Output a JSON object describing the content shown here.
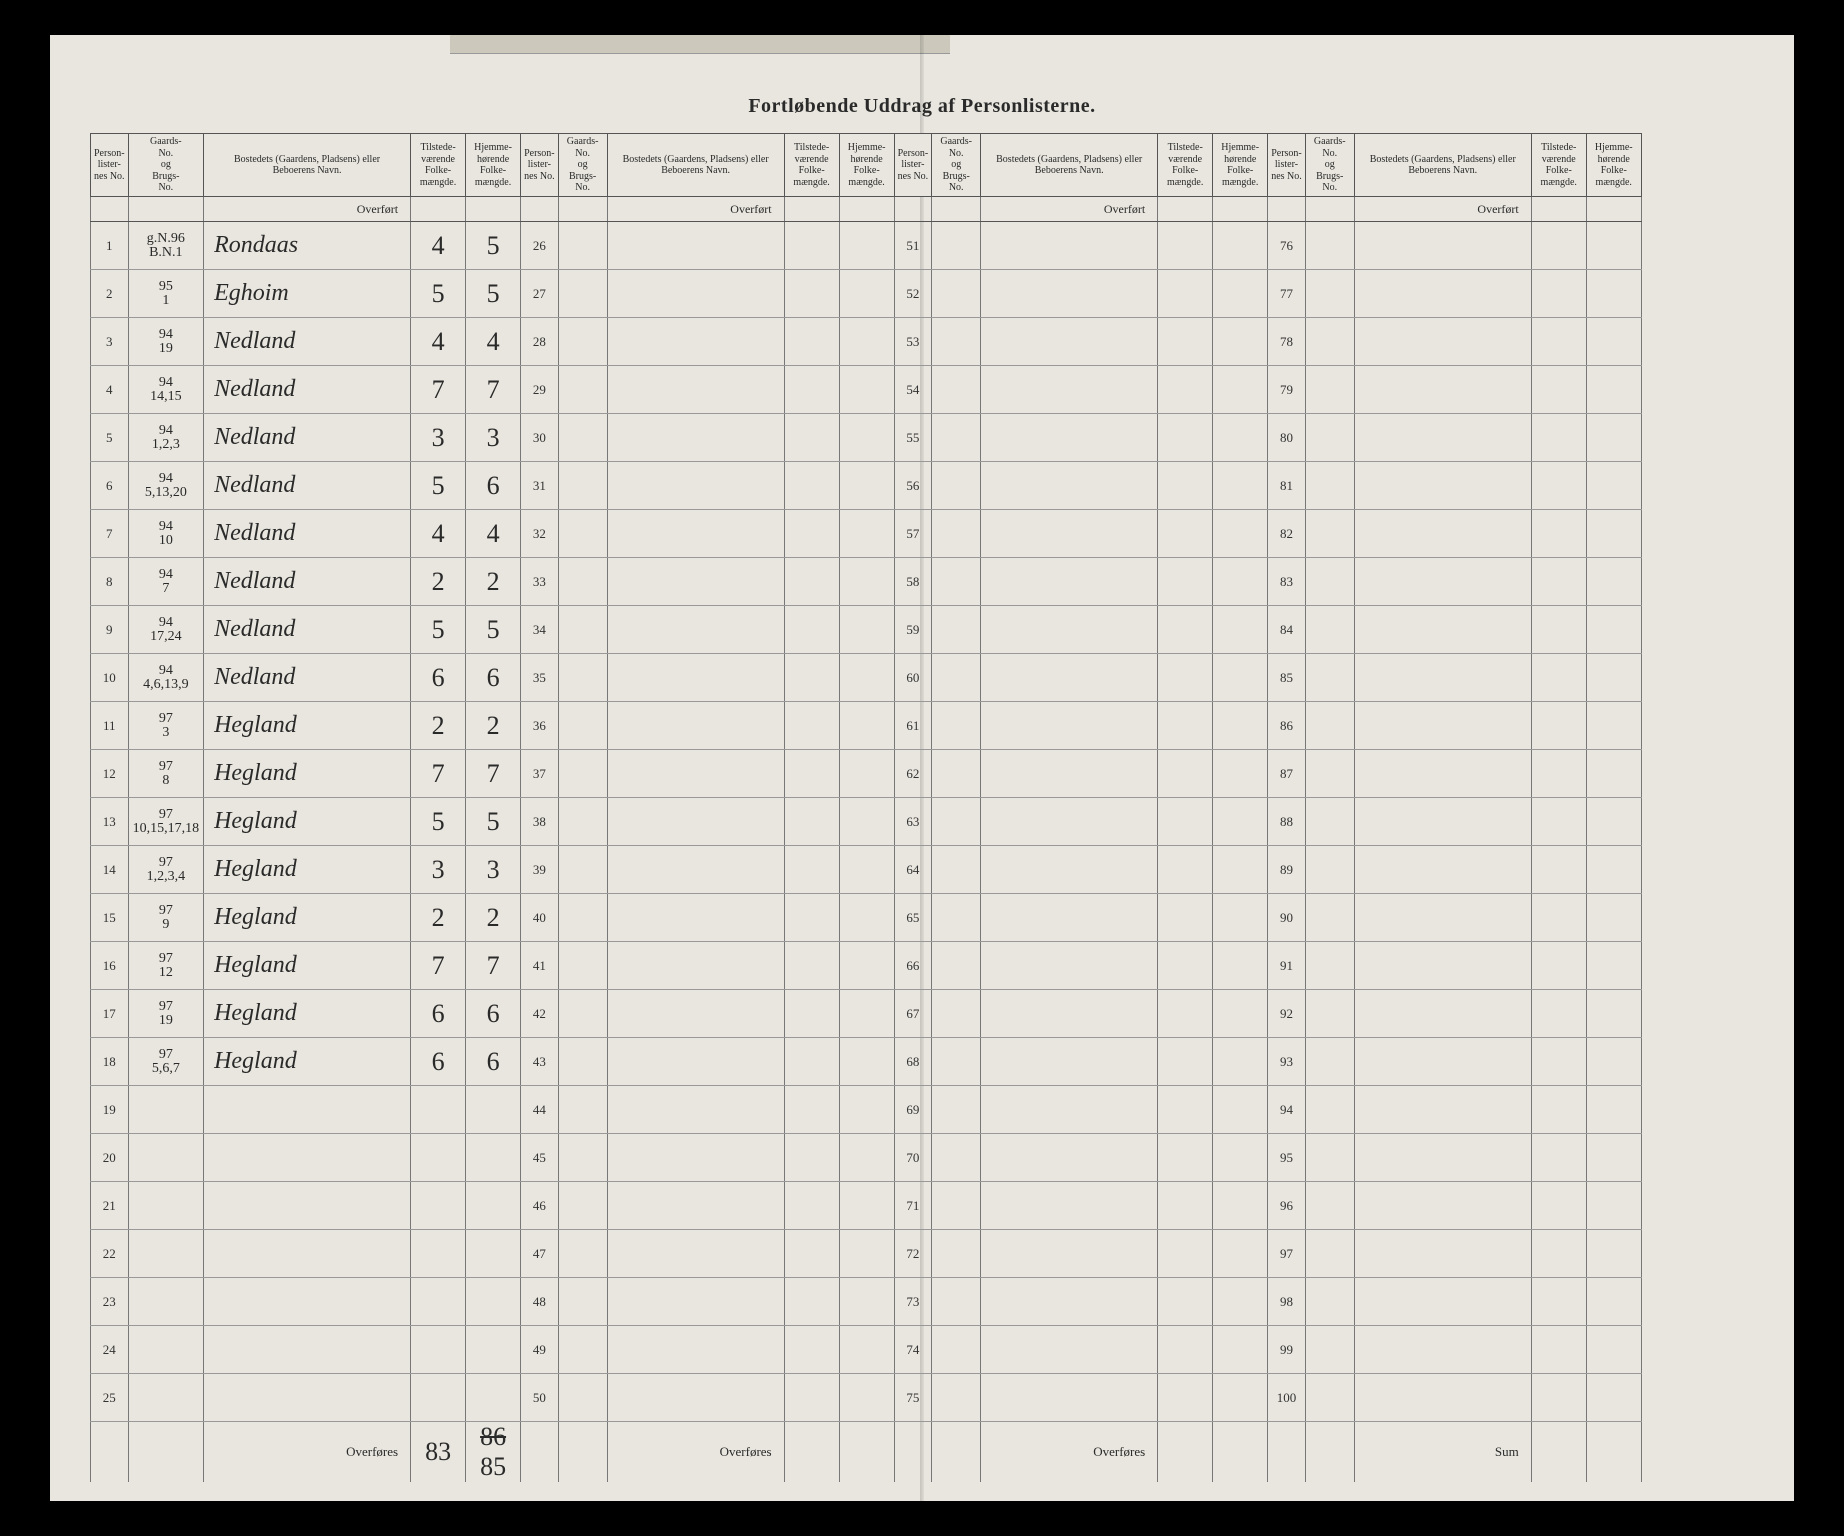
{
  "title": "Fortløbende Uddrag af Personlisterne.",
  "headers": {
    "personlister": "Person-\nlister-\nnes No.",
    "gaards": "Gaards-\nNo.\nog\nBrugs-\nNo.",
    "bosted": "Bostedets (Gaardens, Pladsens) eller\nBeboerens Navn.",
    "tilstede": "Tilstede-\nværende\nFolke-\nmængde.",
    "hjemme": "Hjemme-\nhørende\nFolke-\nmængde."
  },
  "overfort": "Overført",
  "overfores": "Overføres",
  "sum": "Sum",
  "totals": {
    "tilstede": "83",
    "hjemme_struck": "86",
    "hjemme": "85"
  },
  "rows": [
    {
      "n": "1",
      "g": "g.N.96\nB.N.1",
      "name": "Rondaas",
      "t": "4",
      "h": "5"
    },
    {
      "n": "2",
      "g": "95\n1",
      "name": "Eghoim",
      "t": "5",
      "h": "5"
    },
    {
      "n": "3",
      "g": "94\n19",
      "name": "Nedland",
      "t": "4",
      "h": "4"
    },
    {
      "n": "4",
      "g": "94\n14,15",
      "name": "Nedland",
      "t": "7",
      "h": "7"
    },
    {
      "n": "5",
      "g": "94\n1,2,3",
      "name": "Nedland",
      "t": "3",
      "h": "3"
    },
    {
      "n": "6",
      "g": "94\n5,13,20",
      "name": "Nedland",
      "t": "5",
      "h": "6"
    },
    {
      "n": "7",
      "g": "94\n10",
      "name": "Nedland",
      "t": "4",
      "h": "4"
    },
    {
      "n": "8",
      "g": "94\n7",
      "name": "Nedland",
      "t": "2",
      "h": "2"
    },
    {
      "n": "9",
      "g": "94\n17,24",
      "name": "Nedland",
      "t": "5",
      "h": "5"
    },
    {
      "n": "10",
      "g": "94\n4,6,13,9",
      "name": "Nedland",
      "t": "6",
      "h": "6"
    },
    {
      "n": "11",
      "g": "97\n3",
      "name": "Hegland",
      "t": "2",
      "h": "2"
    },
    {
      "n": "12",
      "g": "97\n8",
      "name": "Hegland",
      "t": "7",
      "h": "7"
    },
    {
      "n": "13",
      "g": "97\n10,15,17,18",
      "name": "Hegland",
      "t": "5",
      "h": "5"
    },
    {
      "n": "14",
      "g": "97\n1,2,3,4",
      "name": "Hegland",
      "t": "3",
      "h": "3"
    },
    {
      "n": "15",
      "g": "97\n9",
      "name": "Hegland",
      "t": "2",
      "h": "2"
    },
    {
      "n": "16",
      "g": "97\n12",
      "name": "Hegland",
      "t": "7",
      "h": "7"
    },
    {
      "n": "17",
      "g": "97\n19",
      "name": "Hegland",
      "t": "6",
      "h": "6"
    },
    {
      "n": "18",
      "g": "97\n5,6,7",
      "name": "Hegland",
      "t": "6",
      "h": "6"
    },
    {
      "n": "19",
      "g": "",
      "name": "",
      "t": "",
      "h": ""
    },
    {
      "n": "20",
      "g": "",
      "name": "",
      "t": "",
      "h": ""
    },
    {
      "n": "21",
      "g": "",
      "name": "",
      "t": "",
      "h": ""
    },
    {
      "n": "22",
      "g": "",
      "name": "",
      "t": "",
      "h": ""
    },
    {
      "n": "23",
      "g": "",
      "name": "",
      "t": "",
      "h": ""
    },
    {
      "n": "24",
      "g": "",
      "name": "",
      "t": "",
      "h": ""
    },
    {
      "n": "25",
      "g": "",
      "name": "",
      "t": "",
      "h": ""
    }
  ],
  "panel2_start": 26,
  "panel3_start": 51,
  "panel4_start": 76,
  "colors": {
    "page_bg": "#e8e6de",
    "ink": "#2a2a2a",
    "rule": "#777777"
  }
}
